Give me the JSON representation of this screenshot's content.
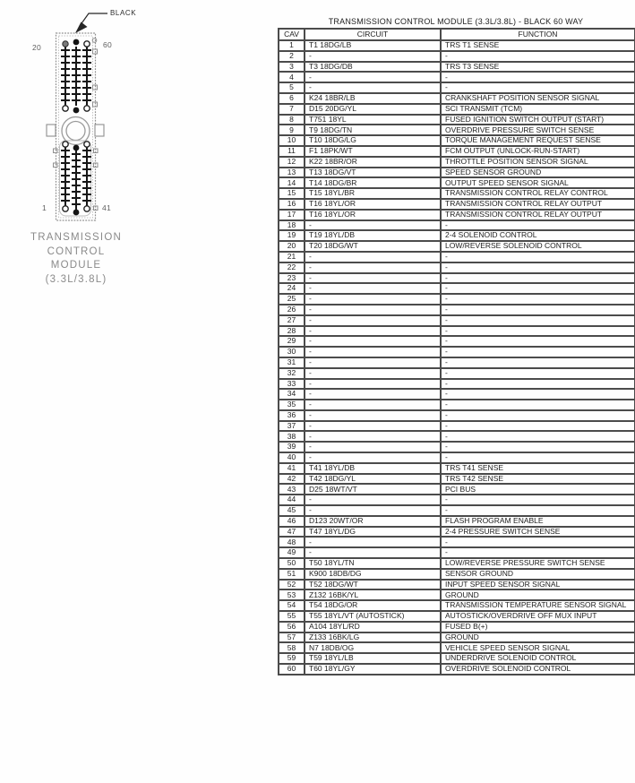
{
  "diagram": {
    "connector_color_label": "BLACK",
    "pin_top_left": "20",
    "pin_top_right": "60",
    "pin_bottom_left": "1",
    "pin_bottom_right": "41",
    "caption_lines": [
      "TRANSMISSION",
      "CONTROL",
      "MODULE",
      "(3.3L/3.8L)"
    ]
  },
  "table": {
    "title": "TRANSMISSION CONTROL MODULE (3.3L/3.8L) - BLACK 60 WAY",
    "headers": [
      "CAV",
      "CIRCUIT",
      "FUNCTION"
    ],
    "rows": [
      [
        "1",
        "T1 18DG/LB",
        "TRS T1 SENSE"
      ],
      [
        "2",
        "-",
        "-"
      ],
      [
        "3",
        "T3 18DG/DB",
        "TRS T3 SENSE"
      ],
      [
        "4",
        "-",
        "-"
      ],
      [
        "5",
        "-",
        "-"
      ],
      [
        "6",
        "K24 18BR/LB",
        "CRANKSHAFT POSITION SENSOR SIGNAL"
      ],
      [
        "7",
        "D15 20DG/YL",
        "SCI TRANSMIT (TCM)"
      ],
      [
        "8",
        "T751 18YL",
        "FUSED IGNITION SWITCH OUTPUT (START)"
      ],
      [
        "9",
        "T9 18DG/TN",
        "OVERDRIVE PRESSURE SWITCH SENSE"
      ],
      [
        "10",
        "T10 18DG/LG",
        "TORQUE MANAGEMENT REQUEST SENSE"
      ],
      [
        "11",
        "F1 18PK/WT",
        "FCM OUTPUT (UNLOCK-RUN-START)"
      ],
      [
        "12",
        "K22 18BR/OR",
        "THROTTLE POSITION SENSOR SIGNAL"
      ],
      [
        "13",
        "T13 18DG/VT",
        "SPEED SENSOR GROUND"
      ],
      [
        "14",
        "T14 18DG/BR",
        "OUTPUT SPEED SENSOR SIGNAL"
      ],
      [
        "15",
        "T15 18YL/BR",
        "TRANSMISSION CONTROL RELAY CONTROL"
      ],
      [
        "16",
        "T16 18YL/OR",
        "TRANSMISSION CONTROL RELAY OUTPUT"
      ],
      [
        "17",
        "T16 18YL/OR",
        "TRANSMISSION CONTROL RELAY OUTPUT"
      ],
      [
        "18",
        "-",
        "-"
      ],
      [
        "19",
        "T19 18YL/DB",
        "2-4 SOLENOID CONTROL"
      ],
      [
        "20",
        "T20 18DG/WT",
        "LOW/REVERSE SOLENOID CONTROL"
      ],
      [
        "21",
        "-",
        "-"
      ],
      [
        "22",
        "-",
        "-"
      ],
      [
        "23",
        "-",
        "-"
      ],
      [
        "24",
        "-",
        "-"
      ],
      [
        "25",
        "-",
        "-"
      ],
      [
        "26",
        "-",
        "-"
      ],
      [
        "27",
        "-",
        "-"
      ],
      [
        "28",
        "-",
        "-"
      ],
      [
        "29",
        "-",
        "-"
      ],
      [
        "30",
        "-",
        "-"
      ],
      [
        "31",
        "-",
        "-"
      ],
      [
        "32",
        "-",
        "-"
      ],
      [
        "33",
        "-",
        "-"
      ],
      [
        "34",
        "-",
        "-"
      ],
      [
        "35",
        "-",
        "-"
      ],
      [
        "36",
        "-",
        "-"
      ],
      [
        "37",
        "-",
        "-"
      ],
      [
        "38",
        "-",
        "-"
      ],
      [
        "39",
        "-",
        "-"
      ],
      [
        "40",
        "-",
        "-"
      ],
      [
        "41",
        "T41 18YL/DB",
        "TRS T41 SENSE"
      ],
      [
        "42",
        "T42 18DG/YL",
        "TRS T42 SENSE"
      ],
      [
        "43",
        "D25 18WT/VT",
        "PCI BUS"
      ],
      [
        "44",
        "-",
        "-"
      ],
      [
        "45",
        "-",
        "-"
      ],
      [
        "46",
        "D123 20WT/OR",
        "FLASH PROGRAM ENABLE"
      ],
      [
        "47",
        "T47 18YL/DG",
        "2-4 PRESSURE SWITCH SENSE"
      ],
      [
        "48",
        "-",
        "-"
      ],
      [
        "49",
        "-",
        "-"
      ],
      [
        "50",
        "T50 18YL/TN",
        "LOW/REVERSE PRESSURE SWITCH SENSE"
      ],
      [
        "51",
        "K900 18DB/DG",
        "SENSOR GROUND"
      ],
      [
        "52",
        "T52 18DG/WT",
        "INPUT SPEED SENSOR SIGNAL"
      ],
      [
        "53",
        "Z132 16BK/YL",
        "GROUND"
      ],
      [
        "54",
        "T54 18DG/OR",
        "TRANSMISSION TEMPERATURE SENSOR SIGNAL"
      ],
      [
        "55",
        "T55 18YL/VT (AUTOSTICK)",
        "AUTOSTICK/OVERDRIVE OFF MUX INPUT"
      ],
      [
        "56",
        "A104 18YL/RD",
        "FUSED B(+)"
      ],
      [
        "57",
        "Z133 16BK/LG",
        "GROUND"
      ],
      [
        "58",
        "N7 18DB/OG",
        "VEHICLE SPEED SENSOR SIGNAL"
      ],
      [
        "59",
        "T59 18YL/LB",
        "UNDERDRIVE SOLENOID CONTROL"
      ],
      [
        "60",
        "T60 18YL/GY",
        "OVERDRIVE SOLENOID CONTROL"
      ]
    ]
  }
}
